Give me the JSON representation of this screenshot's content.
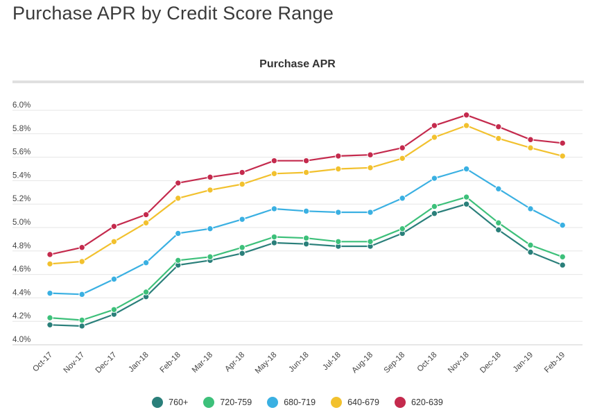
{
  "page": {
    "title": "Purchase APR by Credit Score Range"
  },
  "chart_data": {
    "type": "line",
    "title": "Purchase APR",
    "xlabel": "",
    "ylabel": "",
    "categories": [
      "Oct-17",
      "Nov-17",
      "Dec-17",
      "Jan-18",
      "Feb-18",
      "Mar-18",
      "Apr-18",
      "May-18",
      "Jun-18",
      "Jul-18",
      "Aug-18",
      "Sep-18",
      "Oct-18",
      "Nov-18",
      "Dec-18",
      "Jan-19",
      "Feb-19"
    ],
    "ylim": [
      4.0,
      6.0
    ],
    "yticks": [
      "4.0%",
      "4.2%",
      "4.4%",
      "4.6%",
      "4.8%",
      "5.0%",
      "5.2%",
      "5.4%",
      "5.6%",
      "5.8%",
      "6.0%"
    ],
    "grid": true,
    "legend_position": "bottom",
    "series": [
      {
        "name": "760+",
        "color": "#2a7f7a",
        "values": [
          4.17,
          4.16,
          4.26,
          4.41,
          4.68,
          4.72,
          4.78,
          4.87,
          4.86,
          4.84,
          4.84,
          4.95,
          5.12,
          5.2,
          4.98,
          4.79,
          4.68
        ]
      },
      {
        "name": "720-759",
        "color": "#3dc07a",
        "values": [
          4.23,
          4.21,
          4.3,
          4.45,
          4.72,
          4.75,
          4.83,
          4.92,
          4.91,
          4.88,
          4.88,
          4.99,
          5.18,
          5.26,
          5.04,
          4.85,
          4.75
        ]
      },
      {
        "name": "680-719",
        "color": "#3ab0e2",
        "values": [
          4.44,
          4.43,
          4.56,
          4.7,
          4.95,
          4.99,
          5.07,
          5.16,
          5.14,
          5.13,
          5.13,
          5.25,
          5.42,
          5.5,
          5.33,
          5.16,
          5.02
        ]
      },
      {
        "name": "640-679",
        "color": "#f2c12e",
        "values": [
          4.69,
          4.71,
          4.88,
          5.04,
          5.25,
          5.32,
          5.37,
          5.46,
          5.47,
          5.5,
          5.51,
          5.59,
          5.77,
          5.87,
          5.76,
          5.68,
          5.61
        ]
      },
      {
        "name": "620-639",
        "color": "#c42a4d",
        "values": [
          4.77,
          4.83,
          5.01,
          5.11,
          5.38,
          5.43,
          5.47,
          5.57,
          5.57,
          5.61,
          5.62,
          5.68,
          5.87,
          5.96,
          5.86,
          5.75,
          5.72
        ]
      }
    ]
  }
}
